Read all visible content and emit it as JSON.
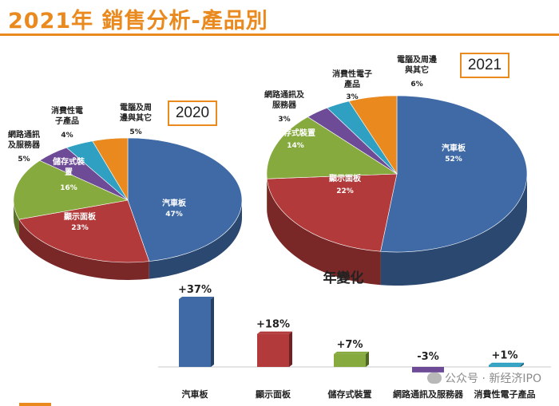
{
  "page": {
    "title": "2021年 銷售分析-產品別"
  },
  "chart_data": [
    {
      "type": "pie",
      "year_label": "2020",
      "slices": [
        {
          "label": "汽車板",
          "value": 47,
          "value_label": "47%",
          "color": "#3f6aa6"
        },
        {
          "label": "顯示面板",
          "value": 23,
          "value_label": "23%",
          "color": "#b33a3a"
        },
        {
          "label": "儲存式裝置",
          "value": 16,
          "value_label": "16%",
          "color": "#86aa3d"
        },
        {
          "label": "網路通訊及服務器",
          "value": 5,
          "value_label": "5%",
          "color": "#6d4b96"
        },
        {
          "label": "消費性電子產品",
          "value": 4,
          "value_label": "4%",
          "color": "#2fa0c2"
        },
        {
          "label": "電腦及周邊與其它",
          "value": 5,
          "value_label": "5%",
          "color": "#e9891e"
        }
      ]
    },
    {
      "type": "pie",
      "year_label": "2021",
      "slices": [
        {
          "label": "汽車板",
          "value": 52,
          "value_label": "52%",
          "color": "#3f6aa6"
        },
        {
          "label": "顯示面板",
          "value": 22,
          "value_label": "22%",
          "color": "#b33a3a"
        },
        {
          "label": "儲存式裝置",
          "value": 14,
          "value_label": "14%",
          "color": "#86aa3d"
        },
        {
          "label": "網路通訊及服務器",
          "value": 3,
          "value_label": "3%",
          "color": "#6d4b96"
        },
        {
          "label": "消費性電子產品",
          "value": 3,
          "value_label": "3%",
          "color": "#2fa0c2"
        },
        {
          "label": "電腦及周邊與其它",
          "value": 6,
          "value_label": "6%",
          "color": "#e9891e"
        }
      ]
    },
    {
      "type": "bar",
      "title": "年變化",
      "categories": [
        "汽車板",
        "顯示面板",
        "儲存式裝置",
        "網路通訊及服務器",
        "消費性電子產品"
      ],
      "values": [
        37,
        18,
        7,
        -3,
        1
      ],
      "value_labels": [
        "+37%",
        "+18%",
        "+7%",
        "-3%",
        "+1%"
      ],
      "colors": [
        "#3f6aa6",
        "#b33a3a",
        "#86aa3d",
        "#6d4b96",
        "#2fa0c2"
      ]
    }
  ],
  "watermark": {
    "text": "公众号 · 新经济IPO"
  }
}
